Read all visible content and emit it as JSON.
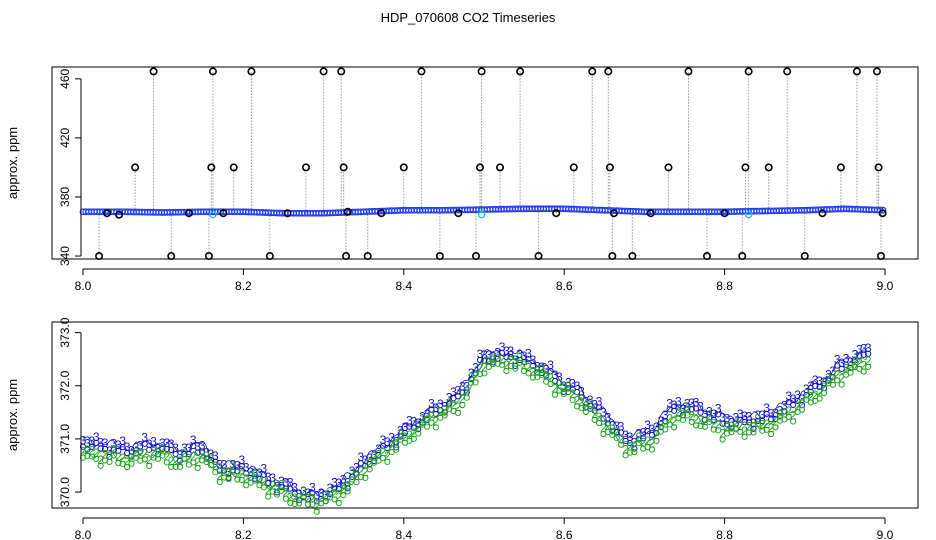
{
  "title": "HDP_070608  CO2 Timeseries",
  "colors": {
    "ring": "#000000",
    "drop": "#9a9a9a",
    "baseline": "#1f3cf0",
    "cyan": "#18c8d0",
    "series2": "#1ea51e",
    "series3": "#1010c8"
  },
  "chart_data": [
    {
      "type": "scatter",
      "ylabel": "approx. ppm",
      "xlim": [
        8.0,
        9.0
      ],
      "ylim": [
        338,
        468
      ],
      "x_ticks": [
        "8.0",
        "8.2",
        "8.4",
        "8.6",
        "8.8",
        "9.0"
      ],
      "x_tick_values": [
        8.0,
        8.2,
        8.4,
        8.6,
        8.8,
        9.0
      ],
      "y_ticks": [
        "340",
        "380",
        "420",
        "460"
      ],
      "y_tick_values": [
        340,
        380,
        420,
        460
      ],
      "baseline": {
        "x": [
          8.0,
          8.05,
          8.1,
          8.15,
          8.2,
          8.25,
          8.3,
          8.35,
          8.4,
          8.45,
          8.5,
          8.55,
          8.6,
          8.65,
          8.7,
          8.75,
          8.8,
          8.85,
          8.9,
          8.95,
          9.0
        ],
        "y": [
          370,
          370,
          369.5,
          370,
          370,
          369,
          369,
          370,
          371,
          371,
          371.5,
          372,
          372,
          371,
          370,
          370,
          370,
          370.5,
          371,
          372,
          371
        ]
      },
      "spikes": [
        {
          "x": 8.02,
          "y": 340
        },
        {
          "x": 8.03,
          "y": 369
        },
        {
          "x": 8.045,
          "y": 368
        },
        {
          "x": 8.065,
          "y": 400
        },
        {
          "x": 8.088,
          "y": 465
        },
        {
          "x": 8.11,
          "y": 340
        },
        {
          "x": 8.132,
          "y": 369
        },
        {
          "x": 8.157,
          "y": 340
        },
        {
          "x": 8.16,
          "y": 400
        },
        {
          "x": 8.162,
          "y": 465
        },
        {
          "x": 8.175,
          "y": 369
        },
        {
          "x": 8.188,
          "y": 400
        },
        {
          "x": 8.21,
          "y": 465
        },
        {
          "x": 8.233,
          "y": 340
        },
        {
          "x": 8.255,
          "y": 369
        },
        {
          "x": 8.278,
          "y": 400
        },
        {
          "x": 8.3,
          "y": 465
        },
        {
          "x": 8.322,
          "y": 465
        },
        {
          "x": 8.325,
          "y": 400
        },
        {
          "x": 8.328,
          "y": 340
        },
        {
          "x": 8.33,
          "y": 370
        },
        {
          "x": 8.355,
          "y": 340
        },
        {
          "x": 8.372,
          "y": 369
        },
        {
          "x": 8.4,
          "y": 400
        },
        {
          "x": 8.422,
          "y": 465
        },
        {
          "x": 8.445,
          "y": 340
        },
        {
          "x": 8.468,
          "y": 369
        },
        {
          "x": 8.49,
          "y": 340
        },
        {
          "x": 8.495,
          "y": 400
        },
        {
          "x": 8.497,
          "y": 465
        },
        {
          "x": 8.52,
          "y": 400
        },
        {
          "x": 8.545,
          "y": 465
        },
        {
          "x": 8.568,
          "y": 340
        },
        {
          "x": 8.59,
          "y": 369
        },
        {
          "x": 8.612,
          "y": 400
        },
        {
          "x": 8.635,
          "y": 465
        },
        {
          "x": 8.655,
          "y": 465
        },
        {
          "x": 8.657,
          "y": 400
        },
        {
          "x": 8.66,
          "y": 340
        },
        {
          "x": 8.662,
          "y": 369
        },
        {
          "x": 8.685,
          "y": 340
        },
        {
          "x": 8.708,
          "y": 369
        },
        {
          "x": 8.73,
          "y": 400
        },
        {
          "x": 8.755,
          "y": 465
        },
        {
          "x": 8.778,
          "y": 340
        },
        {
          "x": 8.8,
          "y": 369
        },
        {
          "x": 8.822,
          "y": 340
        },
        {
          "x": 8.826,
          "y": 400
        },
        {
          "x": 8.83,
          "y": 465
        },
        {
          "x": 8.855,
          "y": 400
        },
        {
          "x": 8.878,
          "y": 465
        },
        {
          "x": 8.9,
          "y": 340
        },
        {
          "x": 8.922,
          "y": 369
        },
        {
          "x": 8.945,
          "y": 400
        },
        {
          "x": 8.965,
          "y": 465
        },
        {
          "x": 8.99,
          "y": 465
        },
        {
          "x": 8.992,
          "y": 400
        },
        {
          "x": 8.995,
          "y": 340
        },
        {
          "x": 8.997,
          "y": 369
        }
      ],
      "cyan_points": [
        {
          "x": 8.162,
          "y": 368
        },
        {
          "x": 8.497,
          "y": 368
        },
        {
          "x": 8.83,
          "y": 368
        }
      ]
    },
    {
      "type": "line",
      "ylabel": "approx. ppm",
      "xlim": [
        8.0,
        9.0
      ],
      "ylim": [
        369.7,
        373.2
      ],
      "x_ticks": [
        "8.0",
        "8.2",
        "8.4",
        "8.6",
        "8.8",
        "9.0"
      ],
      "x_tick_values": [
        8.0,
        8.2,
        8.4,
        8.6,
        8.8,
        9.0
      ],
      "y_ticks": [
        "370.0",
        "371.0",
        "372.0",
        "373.0"
      ],
      "y_tick_values": [
        370.0,
        371.0,
        372.0,
        373.0
      ],
      "series": [
        {
          "marker": "3",
          "color": "#1010c8",
          "x": [
            8.0,
            8.03,
            8.06,
            8.09,
            8.12,
            8.15,
            8.17,
            8.2,
            8.23,
            8.26,
            8.29,
            8.32,
            8.35,
            8.38,
            8.41,
            8.44,
            8.47,
            8.5,
            8.53,
            8.56,
            8.59,
            8.62,
            8.65,
            8.68,
            8.71,
            8.74,
            8.77,
            8.8,
            8.83,
            8.86,
            8.89,
            8.92,
            8.95,
            8.98
          ],
          "y": [
            371.0,
            370.9,
            370.85,
            370.95,
            370.8,
            370.9,
            370.5,
            370.5,
            370.3,
            370.1,
            369.95,
            370.15,
            370.6,
            370.95,
            371.3,
            371.6,
            371.9,
            372.6,
            372.65,
            372.5,
            372.2,
            371.9,
            371.5,
            371.0,
            371.2,
            371.7,
            371.6,
            371.4,
            371.4,
            371.5,
            371.8,
            372.1,
            372.5,
            372.7
          ]
        },
        {
          "marker": "2",
          "color": "#1ea51e",
          "x": [
            8.0,
            8.03,
            8.06,
            8.09,
            8.12,
            8.15,
            8.17,
            8.2,
            8.23,
            8.26,
            8.29,
            8.32,
            8.35,
            8.38,
            8.41,
            8.44,
            8.47,
            8.5,
            8.53,
            8.56,
            8.59,
            8.62,
            8.65,
            8.68,
            8.71,
            8.74,
            8.77,
            8.8,
            8.83,
            8.86,
            8.89,
            8.92,
            8.95,
            8.98
          ],
          "y": [
            370.75,
            370.7,
            370.65,
            370.75,
            370.6,
            370.7,
            370.4,
            370.35,
            370.15,
            369.95,
            369.85,
            370.0,
            370.45,
            370.8,
            371.15,
            371.45,
            371.7,
            372.45,
            372.5,
            372.35,
            372.05,
            371.75,
            371.3,
            370.85,
            371.0,
            371.5,
            371.4,
            371.2,
            371.25,
            371.3,
            371.6,
            371.95,
            372.3,
            372.5
          ]
        }
      ]
    }
  ]
}
